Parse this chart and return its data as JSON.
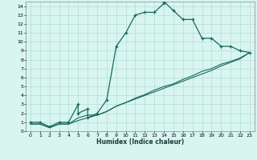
{
  "xlabel": "Humidex (Indice chaleur)",
  "bg_color": "#d8f5f0",
  "grid_color": "#aad8d0",
  "line_color": "#1a6a5a",
  "xlim": [
    -0.5,
    23.5
  ],
  "ylim": [
    0,
    14.5
  ],
  "xticks": [
    0,
    1,
    2,
    3,
    4,
    5,
    6,
    7,
    8,
    9,
    10,
    11,
    12,
    13,
    14,
    15,
    16,
    17,
    18,
    19,
    20,
    21,
    22,
    23
  ],
  "yticks": [
    0,
    1,
    2,
    3,
    4,
    5,
    6,
    7,
    8,
    9,
    10,
    11,
    12,
    13,
    14
  ],
  "line1_x": [
    0,
    1,
    2,
    3,
    4,
    5,
    5,
    6,
    6,
    7,
    8,
    9,
    10,
    11,
    12,
    13,
    14,
    14,
    15,
    16,
    17,
    18,
    19,
    20,
    21,
    22,
    23
  ],
  "line1_y": [
    1,
    1,
    0.5,
    1,
    1,
    3,
    2,
    2.5,
    1.5,
    2,
    3.5,
    9.5,
    11,
    13,
    13.3,
    13.3,
    14.3,
    14.5,
    13.5,
    12.5,
    12.5,
    10.4,
    10.4,
    9.5,
    9.5,
    9.0,
    8.8
  ],
  "line2_x": [
    0,
    1,
    2,
    3,
    4,
    5,
    6,
    7,
    8,
    9,
    10,
    11,
    12,
    13,
    14,
    15,
    16,
    17,
    18,
    19,
    20,
    21,
    22,
    23
  ],
  "line2_y": [
    0.8,
    0.8,
    0.4,
    0.8,
    0.8,
    1.2,
    1.5,
    1.8,
    2.2,
    2.8,
    3.2,
    3.6,
    4.0,
    4.4,
    4.8,
    5.2,
    5.6,
    6.0,
    6.4,
    6.8,
    7.3,
    7.7,
    8.1,
    8.8
  ],
  "line3_x": [
    0,
    1,
    2,
    3,
    4,
    5,
    6,
    7,
    8,
    9,
    10,
    11,
    12,
    13,
    14,
    15,
    16,
    17,
    18,
    19,
    20,
    21,
    22,
    23
  ],
  "line3_y": [
    0.8,
    0.8,
    0.4,
    0.8,
    0.8,
    1.5,
    1.8,
    1.8,
    2.2,
    2.8,
    3.2,
    3.7,
    4.1,
    4.6,
    5.0,
    5.3,
    5.8,
    6.2,
    6.7,
    7.0,
    7.5,
    7.8,
    8.2,
    8.8
  ]
}
